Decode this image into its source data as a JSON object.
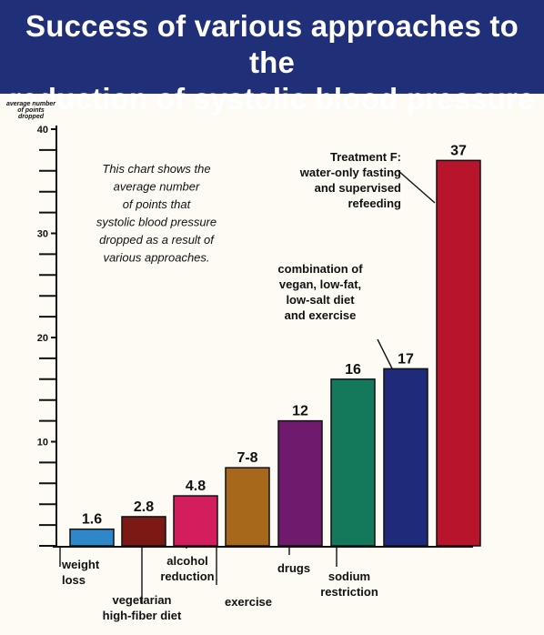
{
  "title_lines": [
    "Success of various approaches to the",
    "reduction of systolic blood pressure"
  ],
  "y_axis_label_lines": [
    "average number",
    "of points",
    "dropped"
  ],
  "note_lines": [
    "This chart shows the",
    "average number",
    "of points that",
    "systolic blood pressure",
    "dropped as a result of",
    "various approaches."
  ],
  "chart_data": {
    "type": "bar",
    "title": "Success of various approaches to the reduction of systolic blood pressure",
    "ylabel": "average number of points dropped",
    "xlabel": "",
    "ylim": [
      0,
      40
    ],
    "yticks": [
      10,
      20,
      30,
      40
    ],
    "grid": false,
    "categories": [
      "weight loss",
      "vegetarian high-fiber diet",
      "alcohol reduction",
      "exercise",
      "drugs",
      "sodium restriction",
      "combination of vegan, low-fat, low-salt diet and exercise",
      "Treatment F: water-only fasting and supervised refeeding"
    ],
    "values": [
      1.6,
      2.8,
      4.8,
      7.5,
      12,
      16,
      17,
      37
    ],
    "value_labels": [
      "1.6",
      "2.8",
      "4.8",
      "7-8",
      "12",
      "16",
      "17",
      "37"
    ],
    "colors": [
      "#2f86c8",
      "#7b1a14",
      "#d31d5d",
      "#a8681c",
      "#6f1a6c",
      "#13795a",
      "#1f2a7a",
      "#b8152c"
    ],
    "category_label_lines": [
      [
        "weight",
        "loss"
      ],
      [
        "vegetarian",
        "high-fiber diet"
      ],
      [
        "alcohol",
        "reduction"
      ],
      [
        "exercise"
      ],
      [
        "drugs"
      ],
      [
        "sodium",
        "restriction"
      ],
      [
        "combination of",
        "vegan, low-fat,",
        "low-salt diet",
        "and exercise"
      ],
      [
        "Treatment F:",
        "water-only fasting",
        "and supervised",
        "refeeding"
      ]
    ]
  }
}
